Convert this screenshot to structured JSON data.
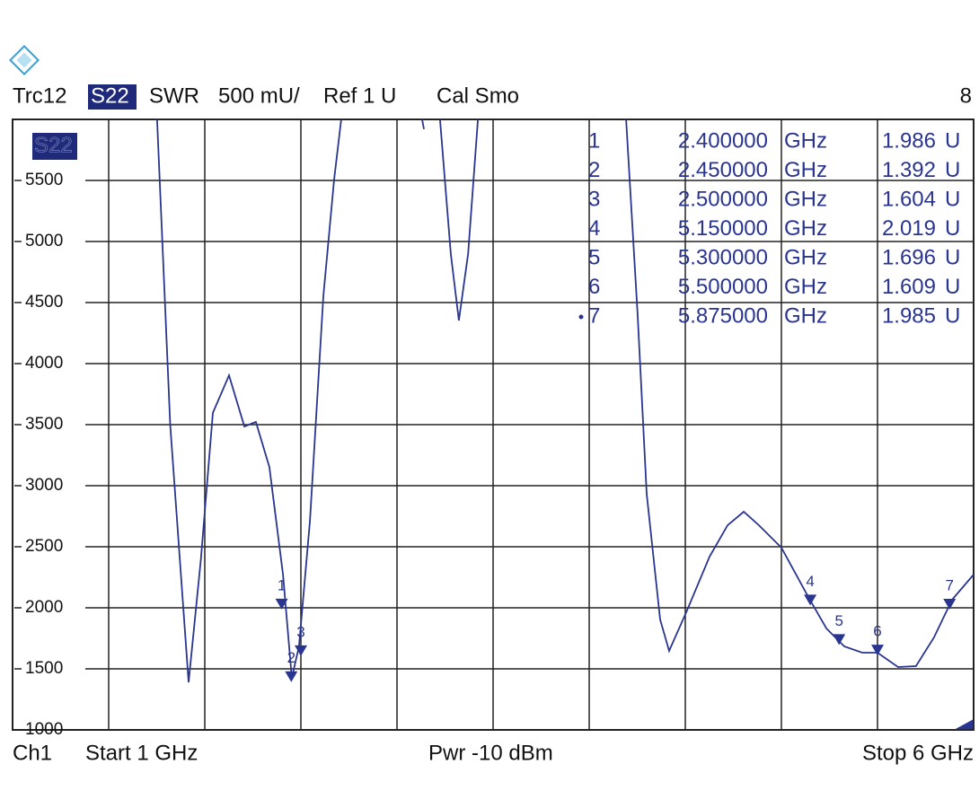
{
  "header": {
    "trace": "Trc12",
    "param": "S22",
    "format": "SWR",
    "scale": "500 mU/",
    "ref": "Ref 1 U",
    "cal": "Cal Smo",
    "channel_count": "8"
  },
  "footer": {
    "channel": "Ch1",
    "start": "Start  1 GHz",
    "power": "Pwr  -10 dBm",
    "stop": "Stop  6 GHz"
  },
  "chart_data": {
    "type": "line",
    "trace_label": "S22",
    "xlim": [
      1,
      6
    ],
    "xticks": [
      1,
      1.5,
      2,
      2.5,
      3,
      3.5,
      4,
      4.5,
      5,
      5.5,
      6
    ],
    "ylim": [
      1000,
      6000
    ],
    "yticks": [
      1000,
      1500,
      2000,
      2500,
      3000,
      3500,
      4000,
      4500,
      5000,
      5500
    ],
    "grid": true,
    "series": [
      {
        "name": "S22",
        "color": "#2a3590",
        "x": [
          1.752,
          1.82,
          1.916,
          1.98,
          2.042,
          2.126,
          2.206,
          2.266,
          2.336,
          2.407,
          2.453,
          2.49,
          2.547,
          2.617,
          2.673,
          2.71,
          null,
          3.131,
          3.14,
          null,
          3.224,
          3.28,
          3.322,
          3.37,
          3.421,
          null,
          4.192,
          4.252,
          4.299,
          4.369,
          4.416,
          4.509,
          4.626,
          4.72,
          4.804,
          4.883,
          5.0,
          5.14,
          5.234,
          5.327,
          5.421,
          5.5,
          5.607,
          5.7,
          5.794,
          5.888,
          6.0
        ],
        "values": [
          6000,
          3500,
          1390,
          2400,
          3596,
          3904,
          3485,
          3522,
          3154,
          2272,
          1426,
          1684,
          2713,
          4551,
          5507,
          6000,
          null,
          6000,
          5920,
          null,
          6000,
          4900,
          4353,
          4900,
          6000,
          null,
          6000,
          4404,
          2934,
          1904,
          1647,
          1978,
          2419,
          2676,
          2787,
          2676,
          2493,
          2088,
          1831,
          1684,
          1632,
          1632,
          1515,
          1522,
          1757,
          2066,
          2272
        ]
      }
    ],
    "markers": {
      "names": [
        "1",
        "2",
        "3",
        "4",
        "5",
        "6",
        "7"
      ],
      "x": [
        2.4,
        2.45,
        2.5,
        5.15,
        5.3,
        5.5,
        5.875
      ],
      "x_labels": [
        "2.400000",
        "2.450000",
        "2.500000",
        "5.150000",
        "5.300000",
        "5.500000",
        "5.875000"
      ],
      "x_unit": "GHz",
      "values": [
        1986,
        1392,
        1604,
        2019,
        1696,
        1609,
        1985
      ],
      "value_labels": [
        "1.986",
        "1.392",
        "1.604",
        "2.019",
        "1.696",
        "1.609",
        "1.985"
      ],
      "value_unit": "U",
      "active": 6
    }
  }
}
